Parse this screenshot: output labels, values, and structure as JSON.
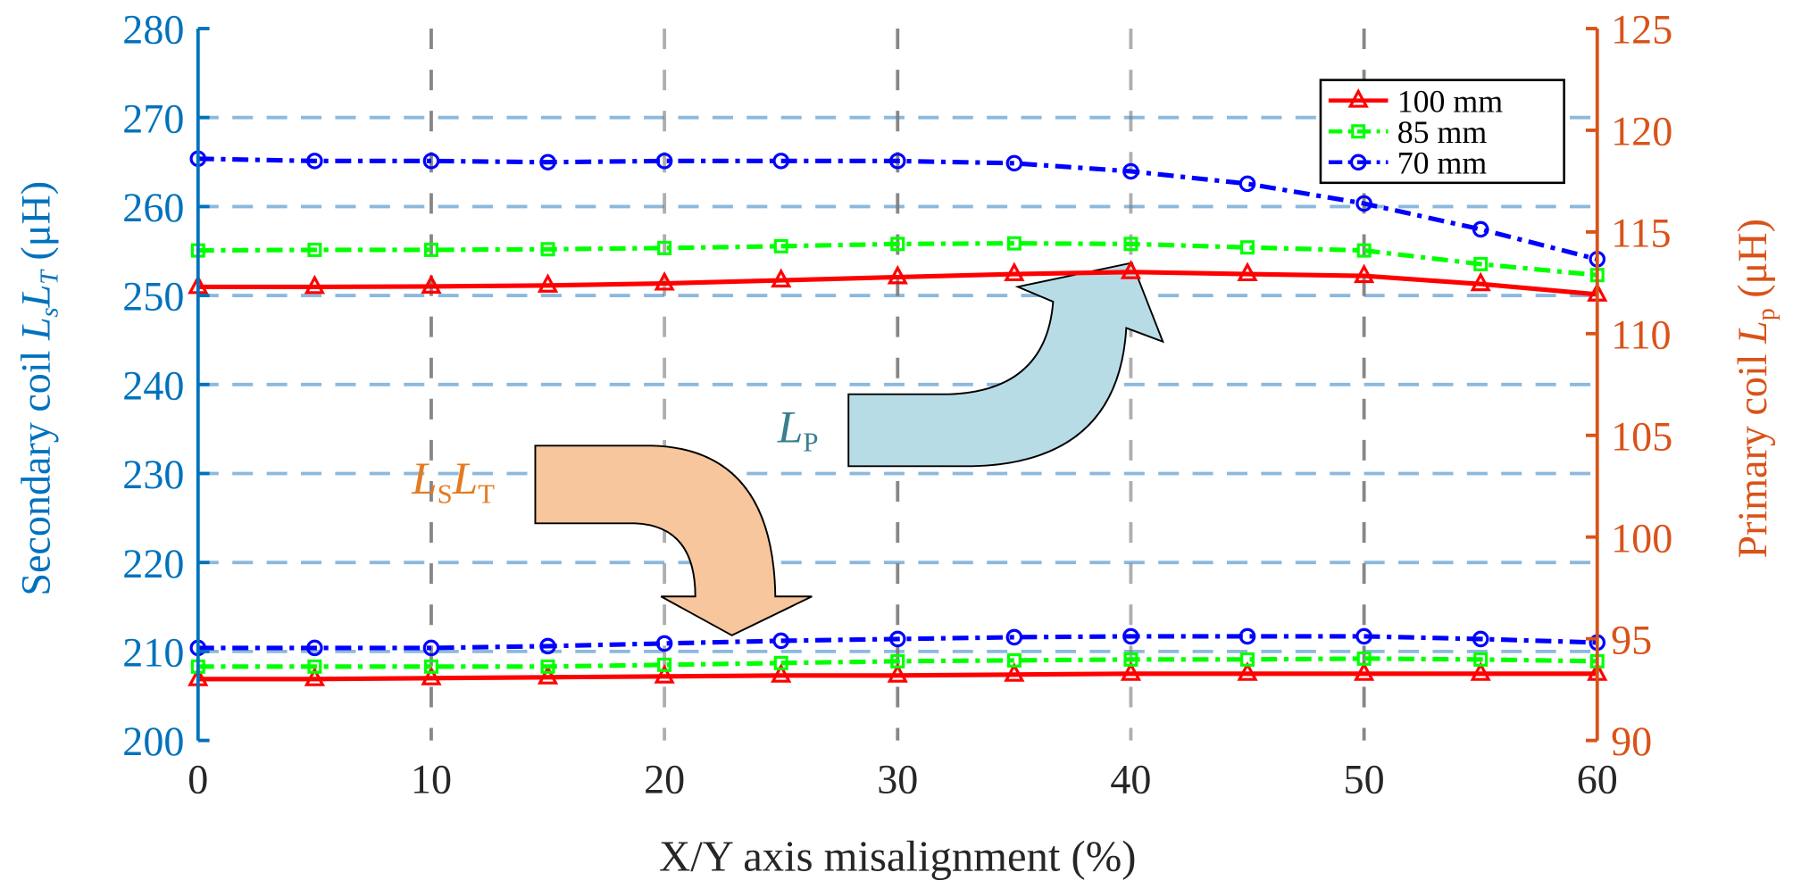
{
  "chart_data": {
    "type": "line",
    "xlabel": "X/Y axis misalignment (%)",
    "ylabel_left": {
      "prefix": "Secondary coil ",
      "l1": "L",
      "s1": "s",
      "l2": "L",
      "s2": "T",
      "suffix": " (μH)"
    },
    "ylabel_right": {
      "prefix": "Primary coil ",
      "l1": "L",
      "s1": "p",
      "suffix": " (μH)"
    },
    "xlim": [
      0,
      60
    ],
    "ylim_left": [
      200,
      280
    ],
    "ylim_right": [
      90,
      125
    ],
    "xticks": [
      "0",
      "10",
      "20",
      "30",
      "40",
      "50",
      "60"
    ],
    "yticks_left": [
      "200",
      "210",
      "220",
      "230",
      "240",
      "250",
      "260",
      "270",
      "280"
    ],
    "yticks_right": [
      "90",
      "95",
      "100",
      "105",
      "110",
      "115",
      "120",
      "125"
    ],
    "grid": true,
    "legend_position": "top-right",
    "x": [
      0,
      5,
      10,
      15,
      20,
      25,
      30,
      35,
      40,
      45,
      50,
      55,
      60
    ],
    "groups": [
      {
        "name": "Lp",
        "axis": "right",
        "series": [
          {
            "name": "100 mm",
            "color": "#FF0000",
            "marker": "triangle",
            "dash": "solid",
            "values": [
              112.3,
              112.3,
              112.32,
              112.37,
              112.47,
              112.62,
              112.78,
              112.93,
              113.03,
              112.93,
              112.84,
              112.44,
              111.93
            ]
          },
          {
            "name": "85 mm",
            "color": "#00FF00",
            "marker": "square",
            "dash": "dashdot",
            "values": [
              114.09,
              114.12,
              114.12,
              114.15,
              114.21,
              114.3,
              114.41,
              114.44,
              114.41,
              114.24,
              114.09,
              113.42,
              112.88
            ]
          },
          {
            "name": "70 mm",
            "color": "#0000FF",
            "marker": "circle",
            "dash": "dashdot",
            "values": [
              118.6,
              118.49,
              118.49,
              118.43,
              118.49,
              118.49,
              118.49,
              118.38,
              117.98,
              117.37,
              116.4,
              115.13,
              113.66
            ]
          }
        ]
      },
      {
        "name": "LsLt",
        "axis": "left",
        "series": [
          {
            "name": "100 mm",
            "color": "#FF0000",
            "marker": "triangle",
            "dash": "solid",
            "values": [
              206.9,
              206.9,
              207.0,
              207.1,
              207.2,
              207.3,
              207.3,
              207.4,
              207.5,
              207.5,
              207.5,
              207.5,
              207.5
            ]
          },
          {
            "name": "85 mm",
            "color": "#00FF00",
            "marker": "square",
            "dash": "dashdot",
            "values": [
              208.3,
              208.3,
              208.3,
              208.3,
              208.5,
              208.7,
              208.9,
              209.0,
              209.1,
              209.1,
              209.2,
              209.1,
              208.9
            ]
          },
          {
            "name": "70 mm",
            "color": "#0000FF",
            "marker": "circle",
            "dash": "dashdot",
            "values": [
              210.4,
              210.4,
              210.4,
              210.6,
              210.9,
              211.2,
              211.4,
              211.6,
              211.7,
              211.7,
              211.7,
              211.4,
              211.0
            ]
          }
        ]
      }
    ],
    "legend": [
      "100 mm",
      "85 mm",
      "70 mm"
    ],
    "annotations": {
      "lp": {
        "main": "L",
        "sub": "P",
        "color": "#3B7F8F",
        "arrow_color": "#B8DCE6"
      },
      "lslt": {
        "main1": "L",
        "sub1": "S",
        "main2": "L",
        "sub2": "T",
        "color": "#E37B22",
        "arrow_color": "#F8C69C"
      }
    },
    "colors": {
      "left_axis": "#0072BD",
      "right_axis": "#D95319",
      "hgrid": "#6FA8D4",
      "vgrid": "#7A7A7A"
    }
  }
}
